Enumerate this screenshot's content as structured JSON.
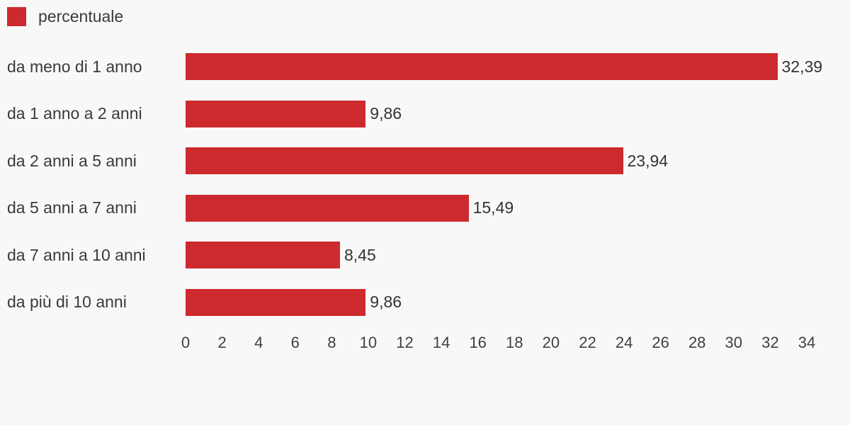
{
  "colors": {
    "background": "#f8f8f8",
    "bar": "#cc2a2e",
    "category_text": "#3a3a3a",
    "value_text": "#333333",
    "tick_text": "#404040"
  },
  "legend": {
    "label": "percentuale"
  },
  "chart_data": {
    "type": "bar",
    "orientation": "horizontal",
    "title": "",
    "xlabel": "",
    "ylabel": "",
    "series_name": "percentuale",
    "categories": [
      "da meno di 1 anno",
      "da 1 anno a 2 anni",
      "da 2 anni a 5 anni",
      "da 5 anni a 7 anni",
      "da 7 anni a 10 anni",
      "da più di 10 anni"
    ],
    "values": [
      32.39,
      9.86,
      23.94,
      15.49,
      8.45,
      9.86
    ],
    "value_labels": [
      "32,39",
      "9,86",
      "23,94",
      "15,49",
      "8,45",
      "9,86"
    ],
    "xlim": [
      0,
      34
    ],
    "x_ticks": [
      0,
      2,
      4,
      6,
      8,
      10,
      12,
      14,
      16,
      18,
      20,
      22,
      24,
      26,
      28,
      30,
      32,
      34
    ],
    "grid": false,
    "legend_position": "top-left"
  }
}
